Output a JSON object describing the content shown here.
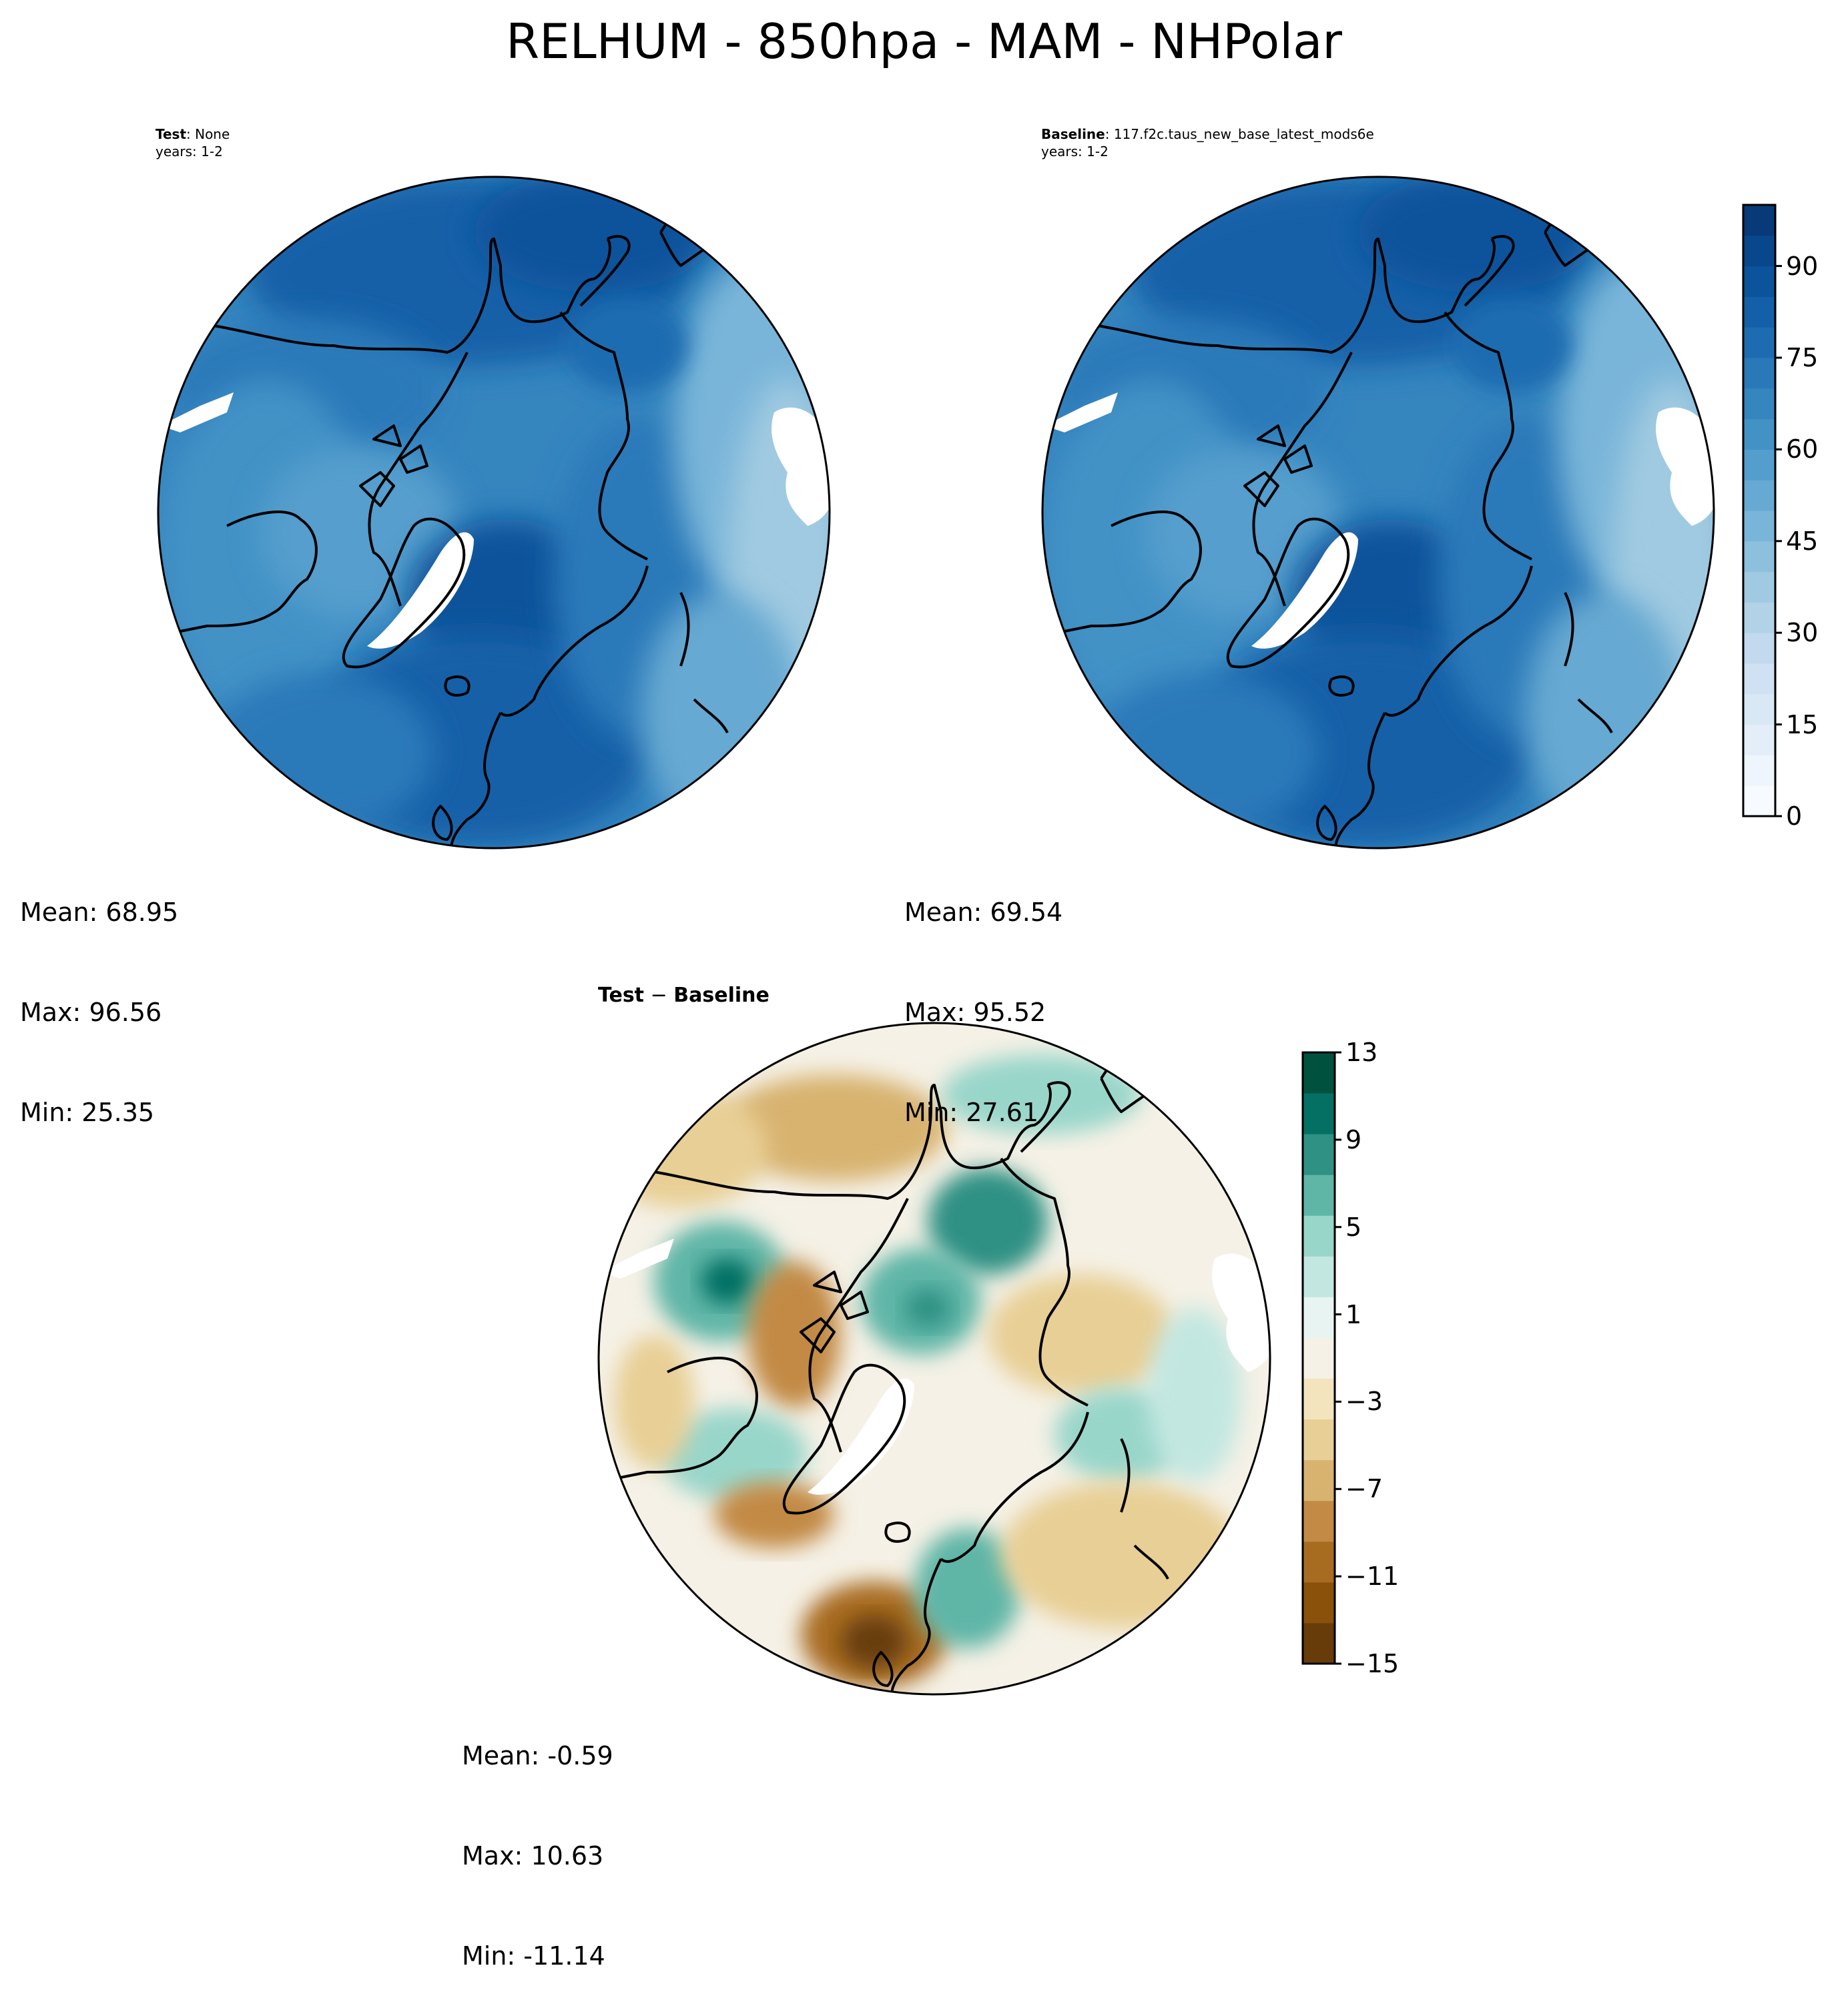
{
  "title": "RELHUM - 850hpa - MAM - NHPolar",
  "panels": {
    "test": {
      "label_bold": "Test",
      "label_rest": ": None",
      "years": "years: 1-2",
      "stats": {
        "mean": "Mean: 68.95",
        "max": "Max: 96.56",
        "min": "Min: 25.35"
      }
    },
    "baseline": {
      "label_bold": "Baseline",
      "label_rest": ": 117.f2c.taus_new_base_latest_mods6e",
      "years": "years: 1-2",
      "stats": {
        "mean": "Mean: 69.54",
        "max": "Max: 95.52",
        "min": "Min: 27.61"
      }
    },
    "diff": {
      "label_bold": "Test",
      "label_op": " − ",
      "label_bold2": "Baseline",
      "stats": {
        "mean": "Mean: -0.59",
        "max": "Max: 10.63",
        "min": "Min: -11.14"
      }
    }
  },
  "colorbar_main": {
    "ticks": [
      "0",
      "15",
      "30",
      "45",
      "60",
      "75",
      "90"
    ],
    "tick_values": [
      0,
      15,
      30,
      45,
      60,
      75,
      90
    ],
    "range": [
      0,
      100
    ],
    "colors": [
      "#f7fbff",
      "#eef5fc",
      "#e3eef9",
      "#d9e8f5",
      "#cfe1f2",
      "#c2d9ee",
      "#b2d2e8",
      "#a0cae1",
      "#8dc0dd",
      "#79b5d9",
      "#66a9d2",
      "#549ecd",
      "#4292c6",
      "#3585bf",
      "#2979b9",
      "#1d6cb1",
      "#1460a8",
      "#0b539b",
      "#08478c",
      "#083a7a"
    ]
  },
  "colorbar_diff": {
    "ticks": [
      "13",
      "9",
      "5",
      "1",
      "−3",
      "−7",
      "−11",
      "−15"
    ],
    "tick_values": [
      13,
      9,
      5,
      1,
      -3,
      -7,
      -11,
      -15
    ],
    "range": [
      -15,
      13
    ],
    "colors": [
      "#673c08",
      "#8a510b",
      "#a86c20",
      "#c28a44",
      "#d8b36f",
      "#e8cf95",
      "#f3e4be",
      "#f5f1e6",
      "#e8f4f1",
      "#c2e7e1",
      "#99d6ca",
      "#5fb6a7",
      "#2f9184",
      "#047063",
      "#00523f"
    ]
  }
}
